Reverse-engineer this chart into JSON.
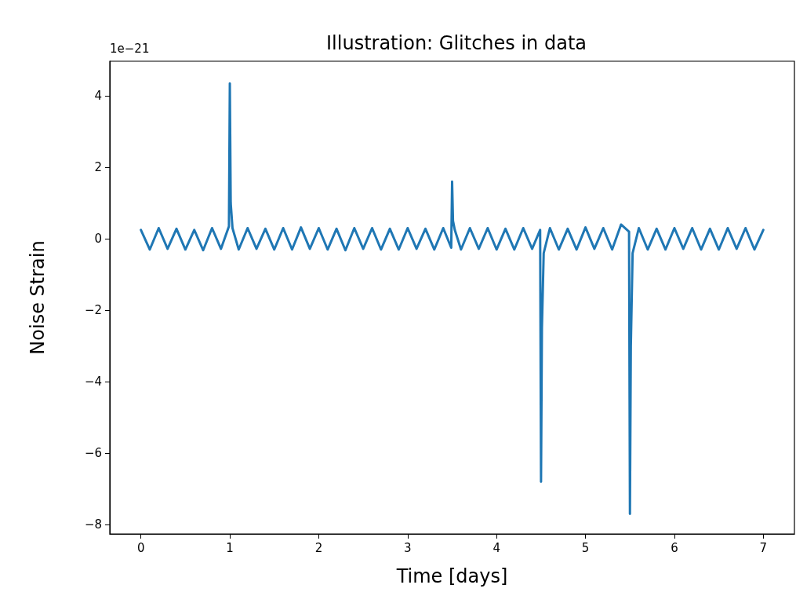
{
  "chart_data": {
    "type": "line",
    "title": "Illustration: Glitches in data",
    "xlabel": "Time [days]",
    "ylabel": "Noise Strain",
    "annotations": [
      "1e−21"
    ],
    "x": [
      0,
      0.1,
      0.2,
      0.3,
      0.4,
      0.5,
      0.6,
      0.7,
      0.8,
      0.9,
      0.99,
      1,
      1.01,
      1.03,
      1.1,
      1.2,
      1.3,
      1.4,
      1.5,
      1.6,
      1.7,
      1.8,
      1.9,
      2,
      2.1,
      2.2,
      2.3,
      2.4,
      2.5,
      2.6,
      2.7,
      2.8,
      2.9,
      3,
      3.1,
      3.2,
      3.3,
      3.4,
      3.49,
      3.5,
      3.51,
      3.53,
      3.6,
      3.7,
      3.8,
      3.9,
      4,
      4.1,
      4.2,
      4.3,
      4.4,
      4.49,
      4.5,
      4.51,
      4.53,
      4.6,
      4.7,
      4.8,
      4.9,
      5,
      5.1,
      5.2,
      5.3,
      5.4,
      5.49,
      5.5,
      5.51,
      5.53,
      5.6,
      5.7,
      5.8,
      5.9,
      6,
      6.1,
      6.2,
      6.3,
      6.4,
      6.5,
      6.6,
      6.7,
      6.8,
      6.9,
      7
    ],
    "series": [
      {
        "color": "#1f77b4",
        "values": [
          0.25,
          -0.3,
          0.3,
          -0.28,
          0.28,
          -0.3,
          0.25,
          -0.32,
          0.3,
          -0.28,
          0.35,
          4.35,
          1.0,
          0.3,
          -0.3,
          0.3,
          -0.28,
          0.28,
          -0.3,
          0.3,
          -0.3,
          0.32,
          -0.28,
          0.3,
          -0.3,
          0.28,
          -0.32,
          0.3,
          -0.28,
          0.3,
          -0.3,
          0.28,
          -0.3,
          0.3,
          -0.28,
          0.28,
          -0.3,
          0.3,
          -0.25,
          1.6,
          0.5,
          0.25,
          -0.3,
          0.3,
          -0.28,
          0.3,
          -0.3,
          0.28,
          -0.3,
          0.3,
          -0.28,
          0.25,
          -6.8,
          -2.5,
          -0.4,
          0.3,
          -0.3,
          0.28,
          -0.3,
          0.32,
          -0.28,
          0.3,
          -0.3,
          0.4,
          0.2,
          -7.7,
          -3.0,
          -0.4,
          0.3,
          -0.3,
          0.28,
          -0.3,
          0.3,
          -0.28,
          0.3,
          -0.3,
          0.28,
          -0.3,
          0.3,
          -0.28,
          0.3,
          -0.3,
          0.25
        ]
      }
    ],
    "xlim": [
      -0.35,
      7.35
    ],
    "xticks": [
      0,
      1,
      2,
      3,
      4,
      5,
      6,
      7
    ],
    "ylim": [
      -8.26,
      4.97
    ],
    "yticks": [
      {
        "value": -8,
        "label": "−8"
      },
      {
        "value": -6,
        "label": "−6"
      },
      {
        "value": -4,
        "label": "−4"
      },
      {
        "value": -2,
        "label": "−2"
      },
      0,
      2,
      4
    ],
    "grid": false,
    "marker": "none",
    "line_style": "solid"
  }
}
